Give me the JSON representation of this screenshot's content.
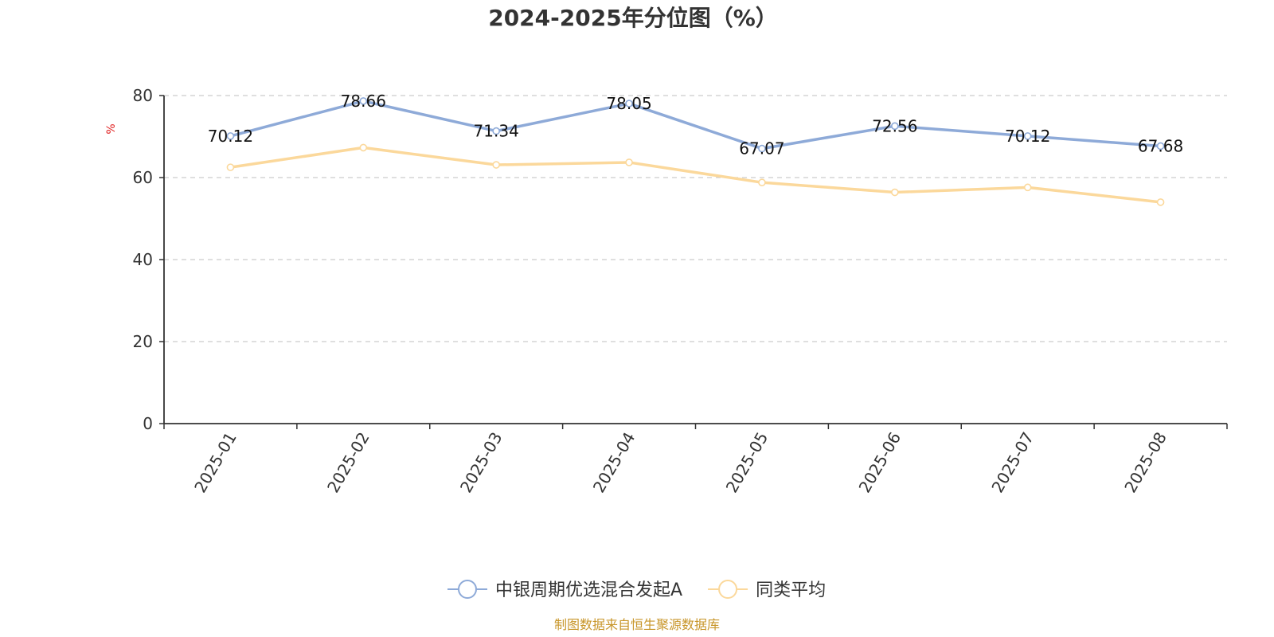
{
  "chart_data": {
    "type": "line",
    "title": "2024-2025年分位图（%）",
    "xlabel": "",
    "ylabel": "%",
    "ylim": [
      0,
      80
    ],
    "yticks": [
      0,
      20,
      40,
      60,
      80
    ],
    "grid": true,
    "legend_position": "bottom",
    "categories": [
      "2025-01",
      "2025-02",
      "2025-03",
      "2025-04",
      "2025-05",
      "2025-06",
      "2025-07",
      "2025-08"
    ],
    "series": [
      {
        "name": "中银周期优选混合发起A",
        "color": "#8eaad8",
        "values": [
          70.12,
          78.66,
          71.34,
          78.05,
          67.07,
          72.56,
          70.12,
          67.68
        ],
        "labels": [
          "70.12",
          "78.66",
          "71.34",
          "78.05",
          "67.07",
          "72.56",
          "70.12",
          "67.68"
        ]
      },
      {
        "name": "同类平均",
        "color": "#fbd89b",
        "values": [
          62.5,
          67.3,
          63.1,
          63.7,
          58.8,
          56.4,
          57.6,
          54.0
        ]
      }
    ],
    "ylabel_color": "#e02020",
    "source": "制图数据来自恒生聚源数据库",
    "source_color": "#c8962a"
  }
}
